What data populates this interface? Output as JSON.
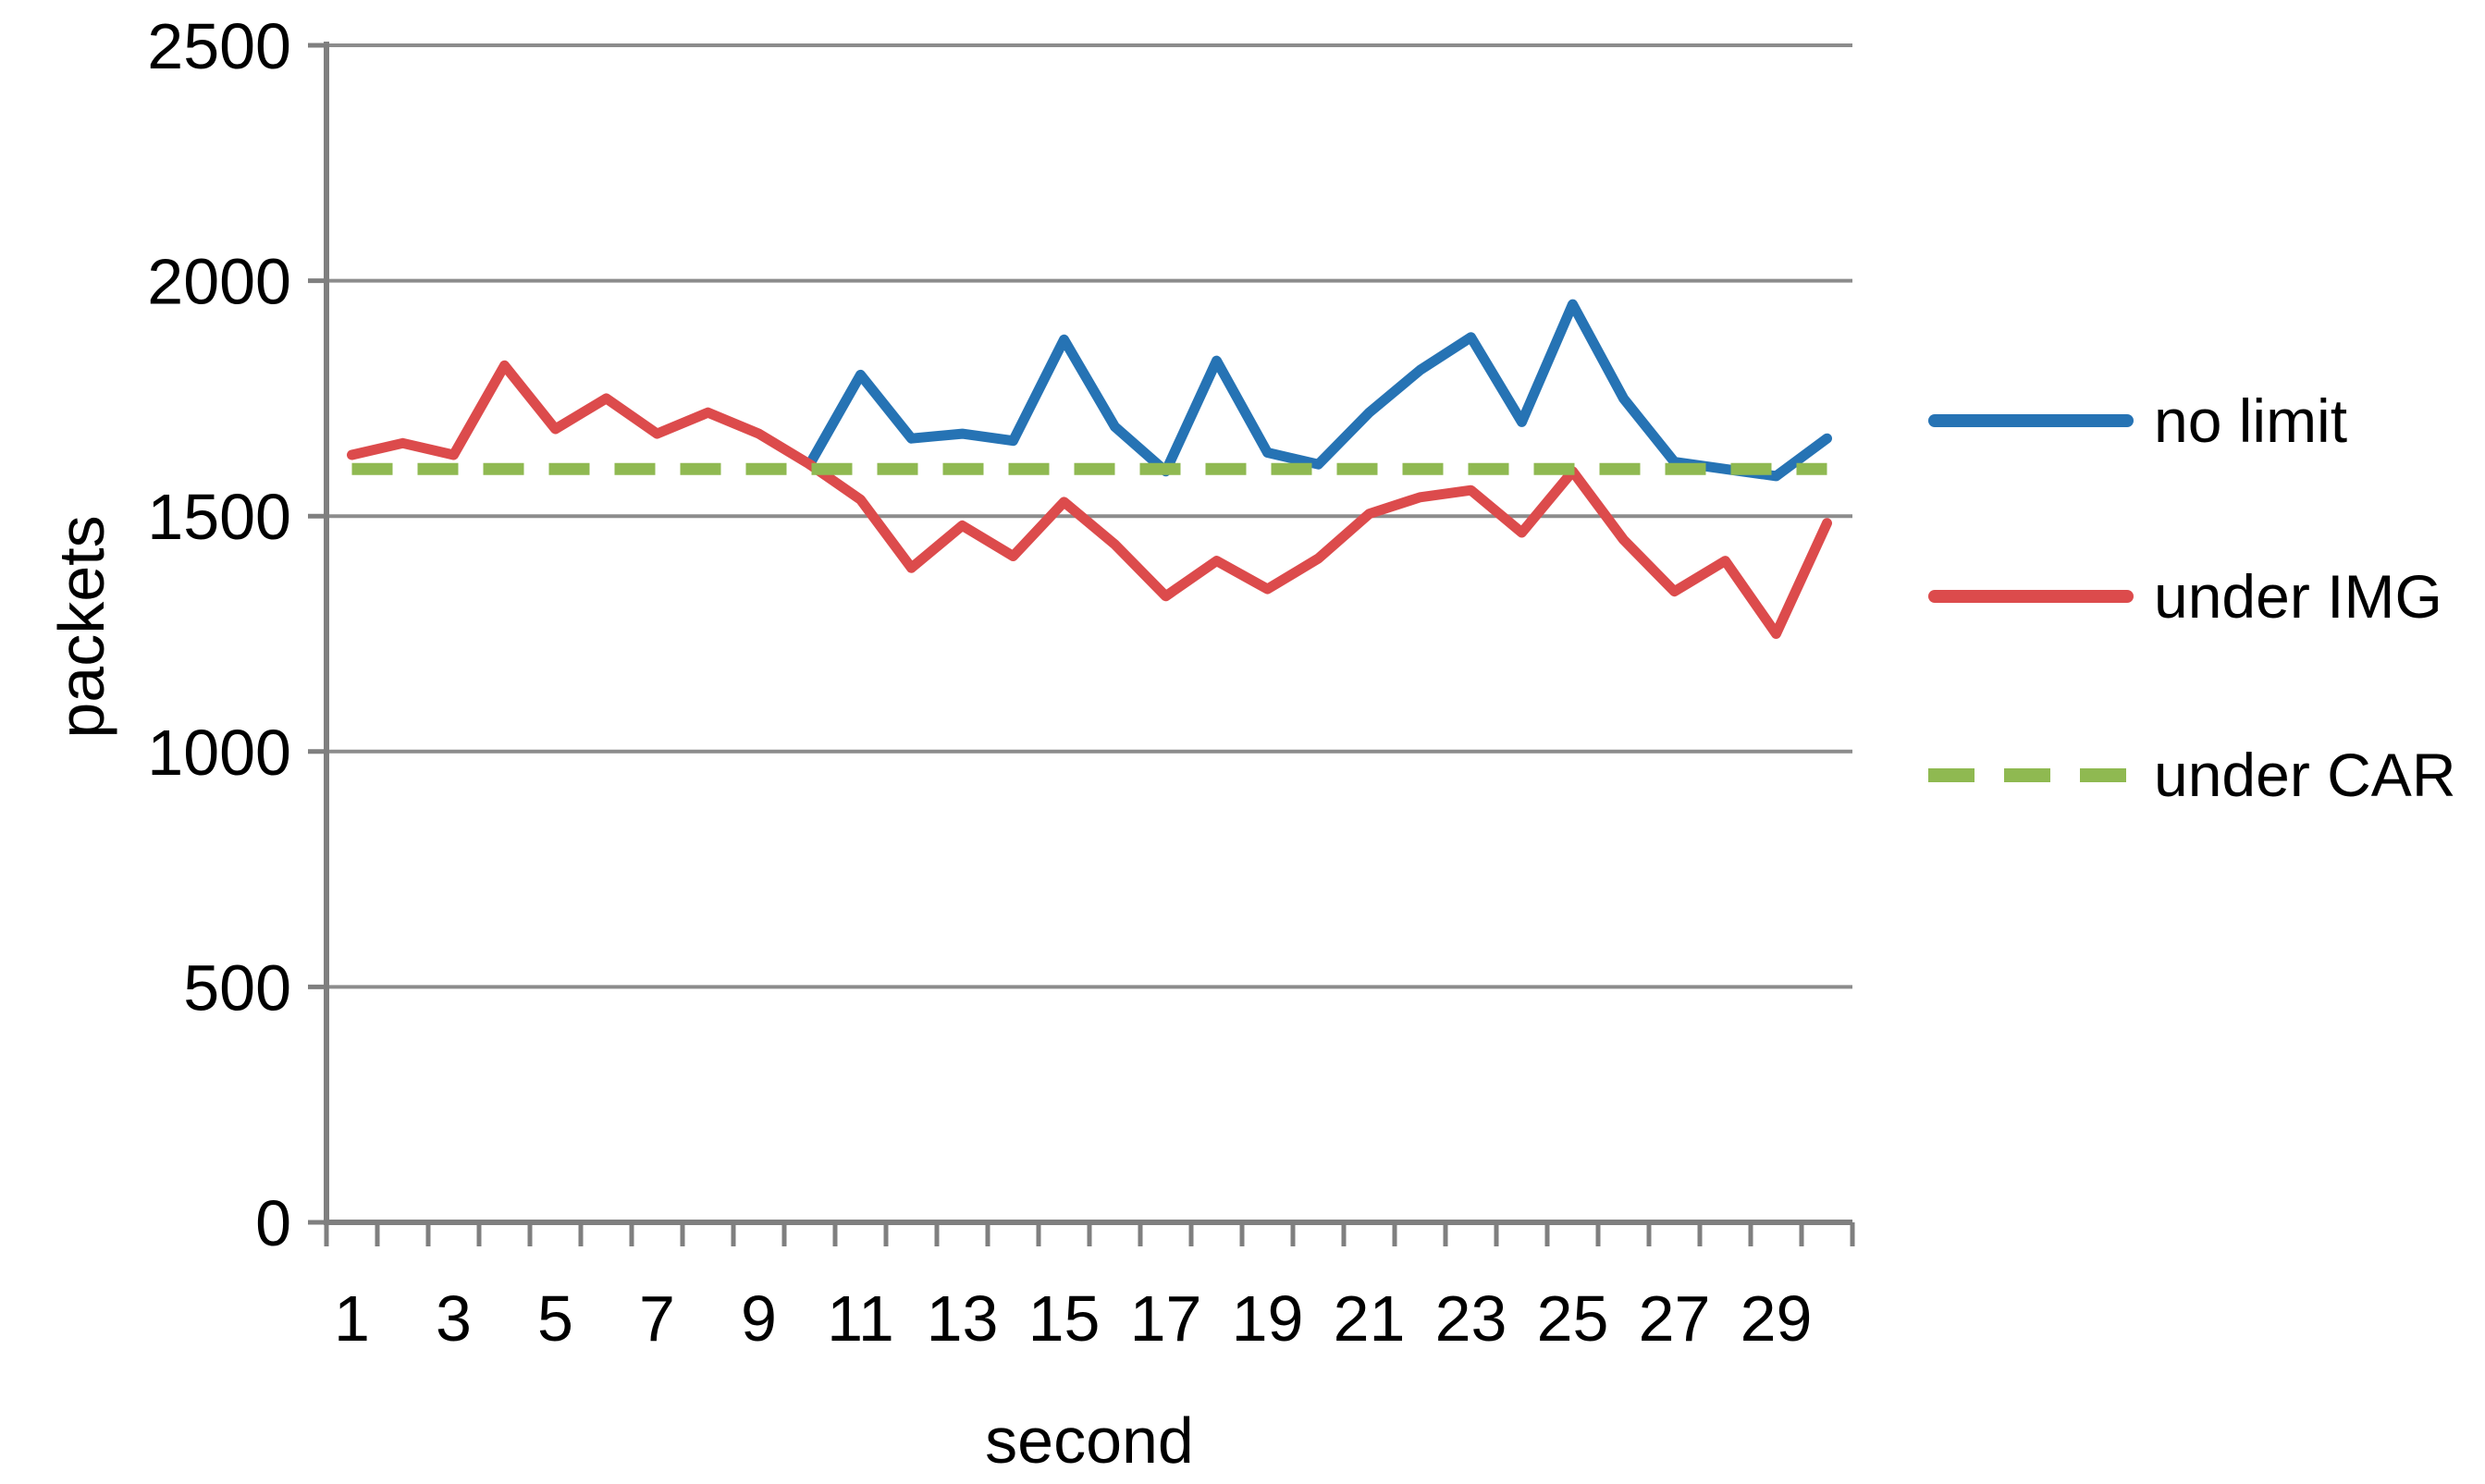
{
  "chart_data": {
    "type": "line",
    "title": "",
    "xlabel": "second",
    "ylabel": "packets",
    "x": [
      1,
      2,
      3,
      4,
      5,
      6,
      7,
      8,
      9,
      10,
      11,
      12,
      13,
      14,
      15,
      16,
      17,
      18,
      19,
      20,
      21,
      22,
      23,
      24,
      25,
      26,
      27,
      28,
      29,
      30
    ],
    "x_tick_labels": [
      "1",
      "3",
      "5",
      "7",
      "9",
      "11",
      "13",
      "15",
      "17",
      "19",
      "21",
      "23",
      "25",
      "27",
      "29"
    ],
    "y_ticks": [
      0,
      500,
      1000,
      1500,
      2000,
      2500
    ],
    "ylim": [
      0,
      2500
    ],
    "grid": "horizontal-only",
    "legend_position": "right-middle",
    "series": [
      {
        "name": "no limit",
        "style": "solid",
        "color": "#2673B4",
        "values": [
          null,
          null,
          null,
          null,
          null,
          null,
          null,
          null,
          null,
          1610,
          1800,
          1665,
          1675,
          1660,
          1875,
          1690,
          1595,
          1830,
          1635,
          1610,
          1720,
          1810,
          1880,
          1700,
          1950,
          1750,
          1615,
          1600,
          1585,
          1665
        ]
      },
      {
        "name": "under IMG",
        "style": "solid",
        "color": "#DC4B4C",
        "values": [
          1630,
          1655,
          1630,
          1820,
          1685,
          1750,
          1675,
          1720,
          1675,
          1610,
          1535,
          1390,
          1480,
          1415,
          1530,
          1440,
          1330,
          1405,
          1345,
          1410,
          1505,
          1540,
          1555,
          1465,
          1595,
          1450,
          1340,
          1405,
          1250,
          1485
        ]
      },
      {
        "name": "under CAR",
        "style": "dashed",
        "color": "#8FB951",
        "values": [
          1600,
          1600,
          1600,
          1600,
          1600,
          1600,
          1600,
          1600,
          1600,
          1600,
          1600,
          1600,
          1600,
          1600,
          1600,
          1600,
          1600,
          1600,
          1600,
          1600,
          1600,
          1600,
          1600,
          1600,
          1600,
          1600,
          1600,
          1600,
          1600,
          1600
        ]
      }
    ]
  },
  "style": {
    "grid_color": "#8C8C8C",
    "axis_color": "#7F7F7F",
    "text_color": "#000000",
    "background": "#FFFFFF"
  }
}
